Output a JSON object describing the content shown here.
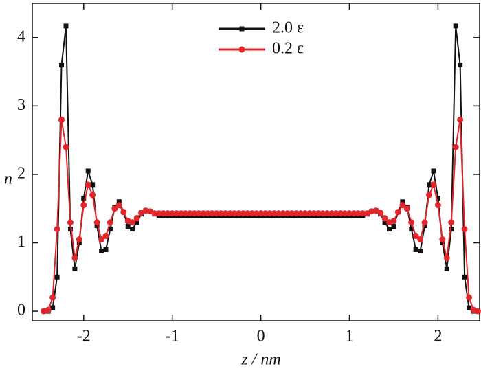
{
  "chart_data": {
    "type": "line",
    "xlabel": "z / nm",
    "ylabel": "n",
    "x": [
      -2.45,
      -2.4,
      -2.35,
      -2.3,
      -2.25,
      -2.2,
      -2.15,
      -2.1,
      -2.05,
      -2,
      -1.95,
      -1.9,
      -1.85,
      -1.8,
      -1.75,
      -1.7,
      -1.65,
      -1.6,
      -1.55,
      -1.5,
      -1.45,
      -1.4,
      -1.35,
      -1.3,
      -1.25,
      -1.2,
      -1.15,
      -1.1,
      -1.05,
      -1,
      -0.95,
      -0.9,
      -0.85,
      -0.8,
      -0.75,
      -0.7,
      -0.65,
      -0.6,
      -0.55,
      -0.5,
      -0.45,
      -0.4,
      -0.35,
      -0.3,
      -0.25,
      -0.2,
      -0.15,
      -0.1,
      -0.05,
      0,
      0.05,
      0.1,
      0.15,
      0.2,
      0.25,
      0.3,
      0.35,
      0.4,
      0.45,
      0.5,
      0.55,
      0.6,
      0.65,
      0.7,
      0.75,
      0.8,
      0.85,
      0.9,
      0.95,
      1,
      1.05,
      1.1,
      1.15,
      1.2,
      1.25,
      1.3,
      1.35,
      1.4,
      1.45,
      1.5,
      1.55,
      1.6,
      1.65,
      1.7,
      1.75,
      1.8,
      1.85,
      1.9,
      1.95,
      2,
      2.05,
      2.1,
      2.15,
      2.2,
      2.25,
      2.3,
      2.35,
      2.4,
      2.45
    ],
    "series": [
      {
        "name": "2.0 ε",
        "color": "#111111",
        "marker": "square",
        "values": [
          0,
          0,
          0.05,
          0.5,
          3.6,
          4.17,
          1.2,
          0.62,
          1.0,
          1.65,
          2.05,
          1.85,
          1.25,
          0.88,
          0.9,
          1.2,
          1.52,
          1.6,
          1.45,
          1.24,
          1.2,
          1.3,
          1.42,
          1.47,
          1.46,
          1.42,
          1.4,
          1.4,
          1.4,
          1.4,
          1.4,
          1.4,
          1.4,
          1.4,
          1.4,
          1.4,
          1.4,
          1.4,
          1.4,
          1.4,
          1.4,
          1.4,
          1.4,
          1.4,
          1.4,
          1.4,
          1.4,
          1.4,
          1.4,
          1.4,
          1.4,
          1.4,
          1.4,
          1.4,
          1.4,
          1.4,
          1.4,
          1.4,
          1.4,
          1.4,
          1.4,
          1.4,
          1.4,
          1.4,
          1.4,
          1.4,
          1.4,
          1.4,
          1.4,
          1.4,
          1.4,
          1.4,
          1.4,
          1.42,
          1.46,
          1.47,
          1.42,
          1.3,
          1.2,
          1.24,
          1.45,
          1.6,
          1.52,
          1.2,
          0.9,
          0.88,
          1.25,
          1.85,
          2.05,
          1.65,
          1.0,
          0.62,
          1.2,
          4.17,
          3.6,
          0.5,
          0.05,
          0,
          0
        ]
      },
      {
        "name": "0.2 ε",
        "color": "#e0262a",
        "marker": "circle",
        "values": [
          0,
          0.02,
          0.2,
          1.2,
          2.8,
          2.4,
          1.3,
          0.78,
          1.05,
          1.55,
          1.85,
          1.7,
          1.3,
          1.05,
          1.1,
          1.3,
          1.5,
          1.55,
          1.45,
          1.32,
          1.3,
          1.36,
          1.44,
          1.47,
          1.46,
          1.43,
          1.43,
          1.43,
          1.43,
          1.43,
          1.43,
          1.43,
          1.43,
          1.43,
          1.43,
          1.43,
          1.43,
          1.43,
          1.43,
          1.43,
          1.43,
          1.43,
          1.43,
          1.43,
          1.43,
          1.43,
          1.43,
          1.43,
          1.43,
          1.43,
          1.43,
          1.43,
          1.43,
          1.43,
          1.43,
          1.43,
          1.43,
          1.43,
          1.43,
          1.43,
          1.43,
          1.43,
          1.43,
          1.43,
          1.43,
          1.43,
          1.43,
          1.43,
          1.43,
          1.43,
          1.43,
          1.43,
          1.43,
          1.43,
          1.46,
          1.47,
          1.44,
          1.36,
          1.3,
          1.32,
          1.45,
          1.55,
          1.5,
          1.3,
          1.1,
          1.05,
          1.3,
          1.7,
          1.85,
          1.55,
          1.05,
          0.78,
          1.3,
          2.4,
          2.8,
          1.2,
          0.2,
          0.02,
          0
        ]
      }
    ],
    "xlim": [
      -2.58,
      2.47
    ],
    "ylim": [
      -0.14,
      4.5
    ],
    "xticks": [
      -2,
      -1,
      0,
      1,
      2
    ],
    "yticks": [
      0,
      1,
      2,
      3,
      4
    ],
    "grid": false,
    "legend": "top"
  }
}
